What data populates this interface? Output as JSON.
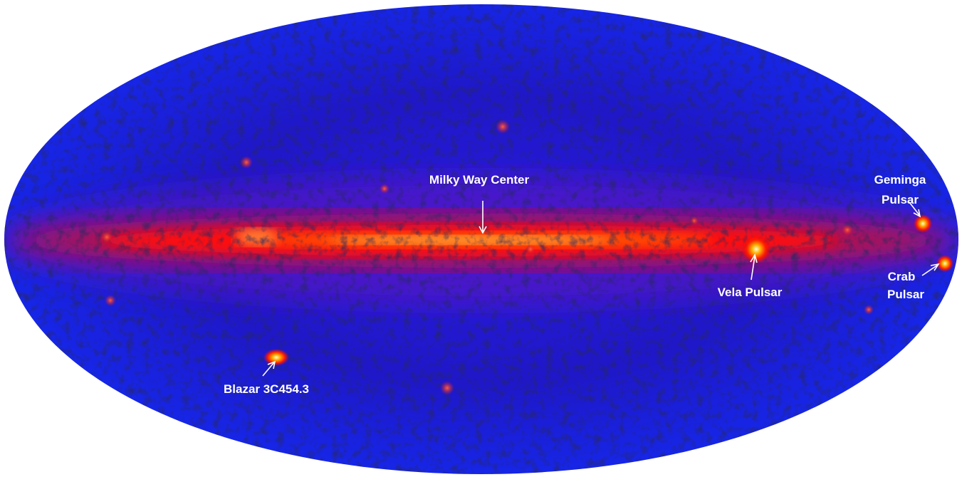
{
  "labels": {
    "milky_way_center": "Milky Way Center",
    "vela": "Vela Pulsar",
    "geminga": [
      "Geminga",
      "Pulsar"
    ],
    "crab": [
      "Crab",
      "Pulsar"
    ],
    "blazar": "Blazar 3C454.3"
  }
}
